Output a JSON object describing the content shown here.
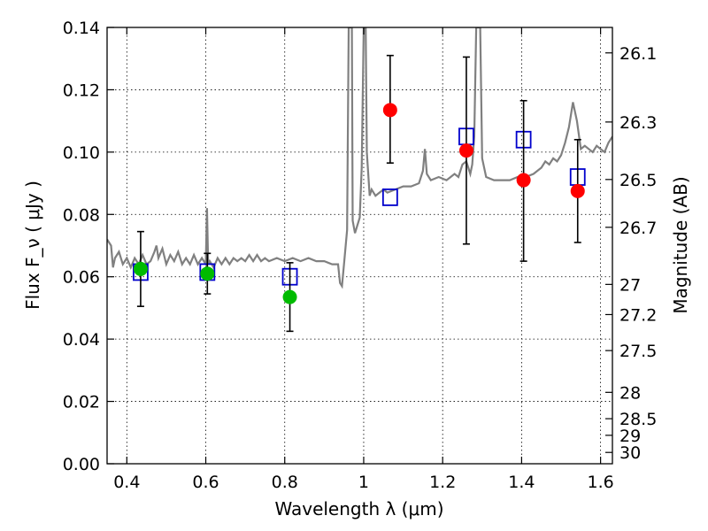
{
  "chart_data": {
    "type": "scatter",
    "xlabel": "Wavelength  λ (μm)",
    "ylabel": "Flux  F_ν  ( μJy )",
    "y2label": "Magnitude (AB)",
    "xlim": [
      0.35,
      1.63
    ],
    "ylim": [
      0.0,
      0.14
    ],
    "x_ticks": [
      {
        "value": 0.4,
        "label": "0.4"
      },
      {
        "value": 0.6,
        "label": "0.6"
      },
      {
        "value": 0.8,
        "label": "0.8"
      },
      {
        "value": 1.0,
        "label": "1"
      },
      {
        "value": 1.2,
        "label": "1.2"
      },
      {
        "value": 1.4,
        "label": "1.4"
      },
      {
        "value": 1.6,
        "label": "1.6"
      }
    ],
    "y_ticks": [
      {
        "value": 0.0,
        "label": "0.00"
      },
      {
        "value": 0.02,
        "label": "0.02"
      },
      {
        "value": 0.04,
        "label": "0.04"
      },
      {
        "value": 0.06,
        "label": "0.06"
      },
      {
        "value": 0.08,
        "label": "0.08"
      },
      {
        "value": 0.1,
        "label": "0.10"
      },
      {
        "value": 0.12,
        "label": "0.12"
      },
      {
        "value": 0.14,
        "label": "0.14"
      }
    ],
    "y2_ticks": [
      {
        "mag": 26.1,
        "label": "26.1"
      },
      {
        "mag": 26.3,
        "label": "26.3"
      },
      {
        "mag": 26.5,
        "label": "26.5"
      },
      {
        "mag": 26.7,
        "label": "26.7"
      },
      {
        "mag": 27.0,
        "label": "27"
      },
      {
        "mag": 27.2,
        "label": "27.2"
      },
      {
        "mag": 27.5,
        "label": "27.5"
      },
      {
        "mag": 28.0,
        "label": "28"
      },
      {
        "mag": 28.5,
        "label": "28.5"
      },
      {
        "mag": 29.0,
        "label": "29"
      },
      {
        "mag": 30.0,
        "label": "30"
      }
    ],
    "grid": true,
    "series": [
      {
        "marker": "line",
        "color": "#808080",
        "points": [
          [
            0.35,
            0.072
          ],
          [
            0.36,
            0.07
          ],
          [
            0.365,
            0.063
          ],
          [
            0.37,
            0.066
          ],
          [
            0.38,
            0.068
          ],
          [
            0.39,
            0.064
          ],
          [
            0.4,
            0.066
          ],
          [
            0.41,
            0.063
          ],
          [
            0.42,
            0.066
          ],
          [
            0.43,
            0.064
          ],
          [
            0.44,
            0.067
          ],
          [
            0.45,
            0.064
          ],
          [
            0.46,
            0.065
          ],
          [
            0.47,
            0.068
          ],
          [
            0.475,
            0.07
          ],
          [
            0.48,
            0.066
          ],
          [
            0.49,
            0.069
          ],
          [
            0.5,
            0.064
          ],
          [
            0.51,
            0.067
          ],
          [
            0.52,
            0.065
          ],
          [
            0.53,
            0.068
          ],
          [
            0.54,
            0.064
          ],
          [
            0.55,
            0.066
          ],
          [
            0.56,
            0.064
          ],
          [
            0.57,
            0.067
          ],
          [
            0.58,
            0.064
          ],
          [
            0.59,
            0.066
          ],
          [
            0.6,
            0.064
          ],
          [
            0.603,
            0.082
          ],
          [
            0.606,
            0.064
          ],
          [
            0.61,
            0.065
          ],
          [
            0.62,
            0.063
          ],
          [
            0.63,
            0.066
          ],
          [
            0.64,
            0.064
          ],
          [
            0.65,
            0.066
          ],
          [
            0.66,
            0.064
          ],
          [
            0.67,
            0.066
          ],
          [
            0.68,
            0.065
          ],
          [
            0.69,
            0.066
          ],
          [
            0.7,
            0.065
          ],
          [
            0.71,
            0.067
          ],
          [
            0.72,
            0.065
          ],
          [
            0.73,
            0.067
          ],
          [
            0.74,
            0.065
          ],
          [
            0.75,
            0.066
          ],
          [
            0.76,
            0.065
          ],
          [
            0.78,
            0.066
          ],
          [
            0.8,
            0.065
          ],
          [
            0.82,
            0.066
          ],
          [
            0.84,
            0.065
          ],
          [
            0.86,
            0.066
          ],
          [
            0.88,
            0.065
          ],
          [
            0.9,
            0.065
          ],
          [
            0.92,
            0.064
          ],
          [
            0.935,
            0.064
          ],
          [
            0.94,
            0.058
          ],
          [
            0.945,
            0.057
          ],
          [
            0.95,
            0.064
          ],
          [
            0.958,
            0.075
          ],
          [
            0.962,
            0.14
          ],
          [
            0.97,
            0.14
          ],
          [
            0.972,
            0.078
          ],
          [
            0.978,
            0.074
          ],
          [
            0.99,
            0.079
          ],
          [
            0.995,
            0.095
          ],
          [
            1.0,
            0.14
          ],
          [
            1.005,
            0.14
          ],
          [
            1.008,
            0.1
          ],
          [
            1.015,
            0.086
          ],
          [
            1.02,
            0.088
          ],
          [
            1.03,
            0.086
          ],
          [
            1.04,
            0.087
          ],
          [
            1.05,
            0.088
          ],
          [
            1.06,
            0.087
          ],
          [
            1.08,
            0.088
          ],
          [
            1.1,
            0.089
          ],
          [
            1.12,
            0.089
          ],
          [
            1.14,
            0.09
          ],
          [
            1.15,
            0.094
          ],
          [
            1.155,
            0.101
          ],
          [
            1.16,
            0.093
          ],
          [
            1.17,
            0.091
          ],
          [
            1.19,
            0.092
          ],
          [
            1.21,
            0.091
          ],
          [
            1.23,
            0.093
          ],
          [
            1.24,
            0.092
          ],
          [
            1.25,
            0.096
          ],
          [
            1.26,
            0.097
          ],
          [
            1.27,
            0.093
          ],
          [
            1.275,
            0.096
          ],
          [
            1.28,
            0.105
          ],
          [
            1.285,
            0.14
          ],
          [
            1.295,
            0.14
          ],
          [
            1.3,
            0.098
          ],
          [
            1.31,
            0.092
          ],
          [
            1.33,
            0.091
          ],
          [
            1.35,
            0.091
          ],
          [
            1.37,
            0.091
          ],
          [
            1.39,
            0.092
          ],
          [
            1.41,
            0.092
          ],
          [
            1.43,
            0.093
          ],
          [
            1.45,
            0.095
          ],
          [
            1.46,
            0.097
          ],
          [
            1.47,
            0.096
          ],
          [
            1.48,
            0.098
          ],
          [
            1.49,
            0.097
          ],
          [
            1.5,
            0.099
          ],
          [
            1.51,
            0.103
          ],
          [
            1.52,
            0.108
          ],
          [
            1.53,
            0.116
          ],
          [
            1.54,
            0.11
          ],
          [
            1.55,
            0.101
          ],
          [
            1.56,
            0.102
          ],
          [
            1.57,
            0.101
          ],
          [
            1.58,
            0.1
          ],
          [
            1.59,
            0.102
          ],
          [
            1.6,
            0.101
          ],
          [
            1.61,
            0.1
          ],
          [
            1.62,
            0.103
          ],
          [
            1.63,
            0.105
          ]
        ]
      },
      {
        "marker": "open-square",
        "color": "#0000cc",
        "points": [
          {
            "x": 0.435,
            "y": 0.0615
          },
          {
            "x": 0.604,
            "y": 0.0615
          },
          {
            "x": 0.813,
            "y": 0.06
          },
          {
            "x": 1.067,
            "y": 0.0855
          },
          {
            "x": 1.26,
            "y": 0.105
          },
          {
            "x": 1.405,
            "y": 0.104
          },
          {
            "x": 1.542,
            "y": 0.092
          }
        ]
      },
      {
        "marker": "filled-circle",
        "color": "#00bb00",
        "points": [
          {
            "x": 0.435,
            "y": 0.0625,
            "yerr_low": 0.0505,
            "yerr_high": 0.0745
          },
          {
            "x": 0.604,
            "y": 0.061,
            "yerr_low": 0.0545,
            "yerr_high": 0.0675
          },
          {
            "x": 0.813,
            "y": 0.0535,
            "yerr_low": 0.0425,
            "yerr_high": 0.0645
          }
        ]
      },
      {
        "marker": "filled-circle",
        "color": "#ff0000",
        "points": [
          {
            "x": 1.067,
            "y": 0.1135,
            "yerr_low": 0.0965,
            "yerr_high": 0.131
          },
          {
            "x": 1.26,
            "y": 0.1005,
            "yerr_low": 0.0705,
            "yerr_high": 0.1305
          },
          {
            "x": 1.405,
            "y": 0.091,
            "yerr_low": 0.065,
            "yerr_high": 0.1165
          },
          {
            "x": 1.542,
            "y": 0.0875,
            "yerr_low": 0.071,
            "yerr_high": 0.104
          }
        ]
      }
    ]
  }
}
